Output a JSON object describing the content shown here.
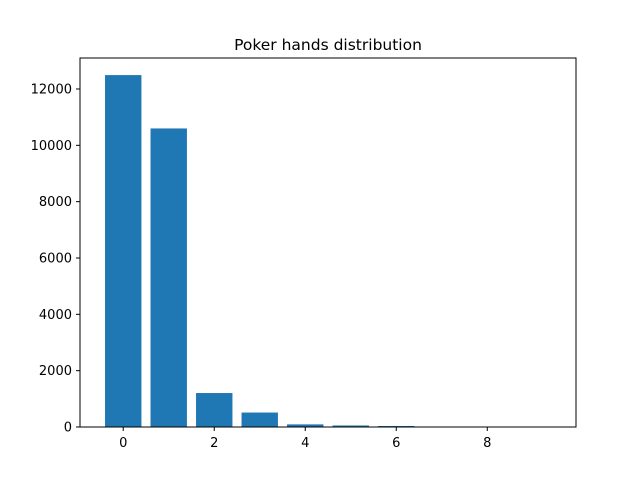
{
  "chart_data": {
    "type": "bar",
    "title": "Poker hands distribution",
    "xlabel": "",
    "ylabel": "",
    "x": [
      0,
      1,
      2,
      3,
      4,
      5,
      6,
      7,
      8,
      9
    ],
    "values": [
      12493,
      10599,
      1206,
      513,
      93,
      54,
      36,
      6,
      5,
      5
    ],
    "bar_width": 0.8,
    "xlim": [
      -0.95,
      9.95
    ],
    "ylim": [
      0,
      13100
    ],
    "xticks": [
      0,
      2,
      4,
      6,
      8
    ],
    "yticks": [
      0,
      2000,
      4000,
      6000,
      8000,
      10000,
      12000
    ],
    "grid": false,
    "legend": "none",
    "bar_color": "#1f77b4"
  }
}
